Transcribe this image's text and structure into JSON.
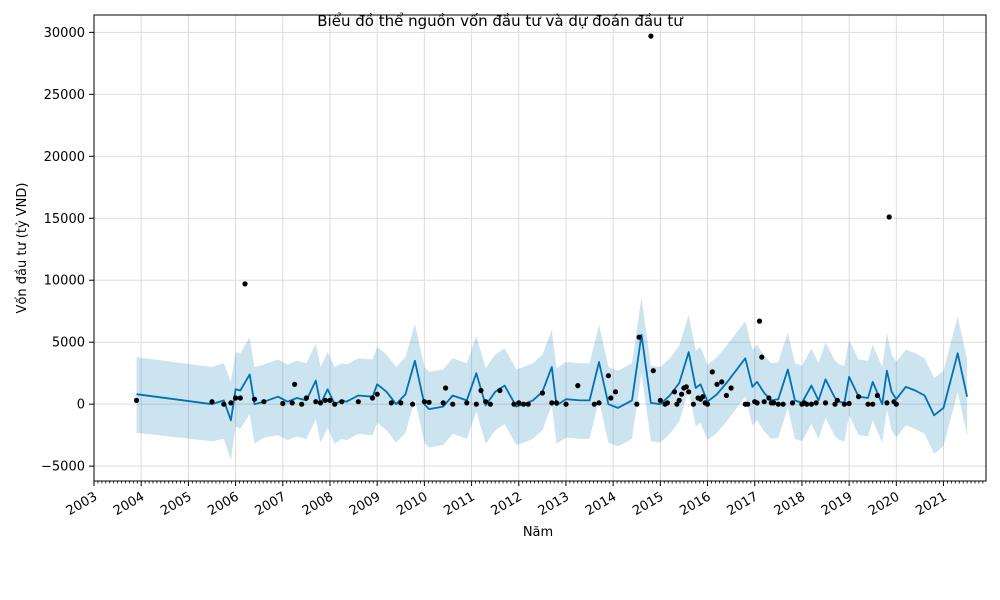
{
  "chart_data": {
    "type": "line",
    "title": "Biểu đồ thể nguồn vốn đầu tư và dự đoán đầu tư",
    "xlabel": "Năm",
    "ylabel": "Vốn đầu tư (tỷ VND)",
    "xlim": [
      2003.0,
      2021.9
    ],
    "ylim": [
      -6200,
      31400
    ],
    "grid": true,
    "x_ticks": [
      {
        "value": 2003,
        "label": "2003"
      },
      {
        "value": 2004,
        "label": "2004"
      },
      {
        "value": 2005,
        "label": "2005"
      },
      {
        "value": 2006,
        "label": "2006"
      },
      {
        "value": 2007,
        "label": "2007"
      },
      {
        "value": 2008,
        "label": "2008"
      },
      {
        "value": 2009,
        "label": "2009"
      },
      {
        "value": 2010,
        "label": "2010"
      },
      {
        "value": 2011,
        "label": "2011"
      },
      {
        "value": 2012,
        "label": "2012"
      },
      {
        "value": 2013,
        "label": "2013"
      },
      {
        "value": 2014,
        "label": "2014"
      },
      {
        "value": 2015,
        "label": "2015"
      },
      {
        "value": 2016,
        "label": "2016"
      },
      {
        "value": 2017,
        "label": "2017"
      },
      {
        "value": 2018,
        "label": "2018"
      },
      {
        "value": 2019,
        "label": "2019"
      },
      {
        "value": 2020,
        "label": "2020"
      },
      {
        "value": 2021,
        "label": "2021"
      }
    ],
    "y_ticks": [
      {
        "value": -5000,
        "label": "−5000"
      },
      {
        "value": 0,
        "label": "0"
      },
      {
        "value": 5000,
        "label": "5000"
      },
      {
        "value": 10000,
        "label": "10000"
      },
      {
        "value": 15000,
        "label": "15000"
      },
      {
        "value": 20000,
        "label": "20000"
      },
      {
        "value": 25000,
        "label": "25000"
      },
      {
        "value": 30000,
        "label": "30000"
      }
    ],
    "colors": {
      "forecast": "#0072B2",
      "band": "#0072B2",
      "points": "#000000",
      "grid": "#dddddd"
    },
    "series": [
      {
        "kind": "forecast",
        "x": [
          2003.9,
          2005.5,
          2005.75,
          2005.9,
          2006.0,
          2006.1,
          2006.3,
          2006.4,
          2006.6,
          2006.9,
          2007.1,
          2007.3,
          2007.5,
          2007.7,
          2007.8,
          2007.95,
          2008.1,
          2008.25,
          2008.35,
          2008.6,
          2008.9,
          2009.0,
          2009.2,
          2009.4,
          2009.6,
          2009.8,
          2010.0,
          2010.1,
          2010.4,
          2010.6,
          2010.9,
          2011.1,
          2011.3,
          2011.5,
          2011.7,
          2011.95,
          2012.1,
          2012.3,
          2012.5,
          2012.7,
          2012.8,
          2013.0,
          2013.3,
          2013.5,
          2013.7,
          2013.9,
          2014.1,
          2014.4,
          2014.6,
          2014.8,
          2015.0,
          2015.2,
          2015.4,
          2015.6,
          2015.75,
          2015.85,
          2016.0,
          2016.2,
          2016.4,
          2016.6,
          2016.8,
          2016.95,
          2017.05,
          2017.2,
          2017.35,
          2017.5,
          2017.7,
          2017.85,
          2018.0,
          2018.1,
          2018.2,
          2018.35,
          2018.5,
          2018.7,
          2018.8,
          2018.9,
          2019.0,
          2019.2,
          2019.4,
          2019.5,
          2019.7,
          2019.8,
          2019.9,
          2020.0,
          2020.2,
          2020.4,
          2020.6,
          2020.8,
          2021.0,
          2021.3,
          2021.5
        ],
        "yhat": [
          800,
          0,
          300,
          -1300,
          1200,
          1100,
          2400,
          0,
          200,
          600,
          200,
          500,
          300,
          1900,
          0,
          1200,
          0,
          300,
          200,
          700,
          600,
          1600,
          1000,
          0,
          800,
          3500,
          0,
          -400,
          -200,
          700,
          300,
          2500,
          -100,
          1000,
          1500,
          -200,
          0,
          300,
          1000,
          3000,
          -100,
          400,
          300,
          300,
          3400,
          0,
          -300,
          300,
          5600,
          100,
          0,
          700,
          1700,
          4200,
          1300,
          1600,
          200,
          800,
          1700,
          2700,
          3700,
          1400,
          1800,
          900,
          300,
          400,
          2800,
          300,
          100,
          800,
          1500,
          300,
          2000,
          500,
          200,
          100,
          2200,
          600,
          500,
          1800,
          0,
          2700,
          1000,
          400,
          1400,
          1100,
          700,
          -900,
          -300,
          4100,
          600
        ],
        "lower": [
          -2300,
          -3000,
          -2800,
          -4500,
          -1800,
          -2000,
          -800,
          -3200,
          -2700,
          -2500,
          -2900,
          -2600,
          -2800,
          -1200,
          -3100,
          -1900,
          -3200,
          -2800,
          -2900,
          -2400,
          -2500,
          -1500,
          -2100,
          -3100,
          -2300,
          400,
          -3100,
          -3500,
          -3300,
          -2400,
          -2800,
          -600,
          -3200,
          -2100,
          -1600,
          -3300,
          -3100,
          -2800,
          -2100,
          -100,
          -3200,
          -2700,
          -2800,
          -2800,
          300,
          -3100,
          -3400,
          -2800,
          2500,
          -3000,
          -3100,
          -2400,
          -1400,
          1100,
          -1800,
          -1500,
          -2900,
          -2300,
          -1400,
          -400,
          600,
          -1700,
          -1300,
          -2200,
          -2800,
          -2700,
          -300,
          -2800,
          -3000,
          -2300,
          -1600,
          -2800,
          -1100,
          -2600,
          -2900,
          -3000,
          -900,
          -2500,
          -2600,
          -1300,
          -3100,
          -400,
          -2100,
          -2700,
          -1700,
          -2000,
          -2400,
          -4000,
          -3400,
          1000,
          -2500
        ],
        "upper": [
          3800,
          3000,
          3300,
          1800,
          4200,
          4100,
          5400,
          3000,
          3200,
          3600,
          3200,
          3500,
          3300,
          4900,
          3000,
          4200,
          3000,
          3300,
          3200,
          3700,
          3600,
          4600,
          4000,
          3000,
          3800,
          6500,
          3000,
          2600,
          2800,
          3700,
          3300,
          5500,
          2900,
          4000,
          4500,
          2800,
          3000,
          3300,
          4000,
          6000,
          2900,
          3400,
          3300,
          3300,
          6400,
          3000,
          2700,
          3300,
          8600,
          3100,
          3000,
          3700,
          4700,
          7200,
          4300,
          4600,
          3200,
          3800,
          4700,
          5700,
          6700,
          4400,
          4800,
          3900,
          3300,
          3400,
          5800,
          3300,
          3100,
          3800,
          4500,
          3300,
          5000,
          3500,
          3200,
          3100,
          5200,
          3600,
          3500,
          4800,
          3000,
          5700,
          4000,
          3400,
          4400,
          4100,
          3700,
          2100,
          2700,
          7100,
          3600
        ]
      },
      {
        "kind": "actual",
        "x": [
          2003.9,
          2005.5,
          2005.75,
          2005.9,
          2006.0,
          2006.1,
          2006.2,
          2006.4,
          2006.6,
          2007.0,
          2007.2,
          2007.25,
          2007.4,
          2007.5,
          2007.7,
          2007.8,
          2007.9,
          2008.0,
          2008.1,
          2008.25,
          2008.6,
          2008.9,
          2009.0,
          2009.3,
          2009.5,
          2009.75,
          2010.0,
          2010.1,
          2010.4,
          2010.45,
          2010.6,
          2010.9,
          2011.1,
          2011.2,
          2011.3,
          2011.4,
          2011.6,
          2011.9,
          2012.0,
          2012.1,
          2012.2,
          2012.5,
          2012.7,
          2012.8,
          2013.0,
          2013.25,
          2013.6,
          2013.7,
          2013.9,
          2013.95,
          2014.05,
          2014.5,
          2014.55,
          2014.8,
          2014.85,
          2015.0,
          2015.1,
          2015.15,
          2015.3,
          2015.35,
          2015.4,
          2015.45,
          2015.5,
          2015.55,
          2015.6,
          2015.7,
          2015.8,
          2015.85,
          2015.9,
          2015.95,
          2016.0,
          2016.1,
          2016.2,
          2016.3,
          2016.4,
          2016.5,
          2016.8,
          2016.85,
          2017.0,
          2017.05,
          2017.1,
          2017.15,
          2017.2,
          2017.3,
          2017.35,
          2017.4,
          2017.5,
          2017.6,
          2017.8,
          2018.0,
          2018.05,
          2018.1,
          2018.2,
          2018.3,
          2018.5,
          2018.7,
          2018.75,
          2018.9,
          2019.0,
          2019.2,
          2019.4,
          2019.5,
          2019.6,
          2019.8,
          2019.85,
          2019.95,
          2020.0
        ],
        "y": [
          300,
          200,
          0,
          100,
          500,
          500,
          9700,
          400,
          200,
          50,
          100,
          1600,
          0,
          500,
          200,
          100,
          300,
          300,
          0,
          200,
          200,
          500,
          800,
          100,
          100,
          0,
          200,
          150,
          100,
          1300,
          0,
          100,
          0,
          1100,
          200,
          0,
          1100,
          0,
          100,
          0,
          0,
          900,
          100,
          100,
          0,
          1500,
          0,
          100,
          2300,
          500,
          1000,
          0,
          5400,
          29700,
          2700,
          300,
          0,
          100,
          1000,
          0,
          300,
          800,
          1300,
          1400,
          1000,
          0,
          500,
          400,
          600,
          100,
          0,
          2600,
          1600,
          1800,
          700,
          1300,
          0,
          0,
          200,
          100,
          6700,
          3800,
          200,
          500,
          100,
          100,
          0,
          0,
          100,
          0,
          100,
          0,
          0,
          100,
          100,
          0,
          300,
          0,
          50,
          600,
          0,
          0,
          700,
          100,
          15100,
          200,
          0
        ]
      }
    ]
  }
}
